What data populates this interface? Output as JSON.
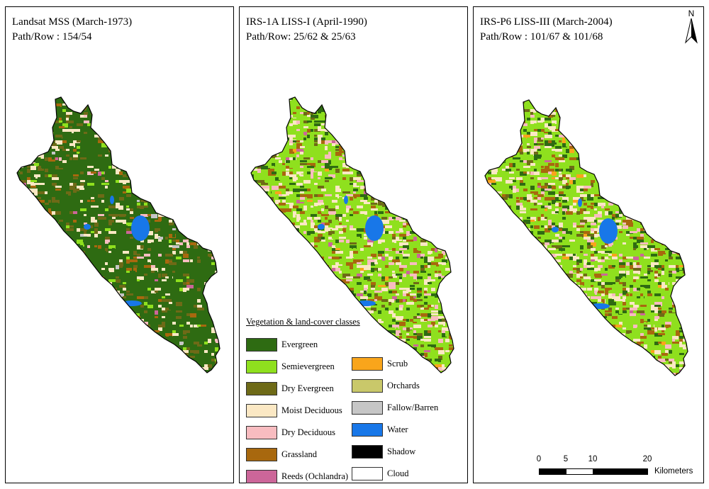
{
  "panels": [
    {
      "title": "Landsat MSS (March-1973)",
      "subtitle": "Path/Row : 154/54"
    },
    {
      "title": "IRS-1A LISS-I (April-1990)",
      "subtitle": "Path/Row: 25/62 & 25/63"
    },
    {
      "title": "IRS-P6 LISS-III (March-2004)",
      "subtitle": "Path/Row : 101/67 & 101/68"
    }
  ],
  "legend": {
    "title": "Vegetation & land-cover classes",
    "classes": [
      {
        "label": "Evergreen",
        "color": "#2e6b12"
      },
      {
        "label": "Semievergreen",
        "color": "#8fe01e"
      },
      {
        "label": "Dry Evergreen",
        "color": "#6e6a17"
      },
      {
        "label": "Moist Deciduous",
        "color": "#fbe8c4"
      },
      {
        "label": "Dry Deciduous",
        "color": "#f8bcc0"
      },
      {
        "label": "Grassland",
        "color": "#a8680e"
      },
      {
        "label": "Reeds (Ochlandra)",
        "color": "#cc6699"
      },
      {
        "label": "Scrub",
        "color": "#f9a51b"
      },
      {
        "label": "Orchards",
        "color": "#c9c86a"
      },
      {
        "label": "Fallow/Barren",
        "color": "#c6c6c6"
      },
      {
        "label": "Water",
        "color": "#1877e8"
      },
      {
        "label": "Shadow",
        "color": "#000000"
      },
      {
        "label": "Cloud",
        "color": "#ffffff"
      }
    ]
  },
  "north_arrow": {
    "label": "N"
  },
  "scale": {
    "ticks": [
      "0",
      "5",
      "10",
      "20"
    ],
    "unit": "Kilometers"
  }
}
